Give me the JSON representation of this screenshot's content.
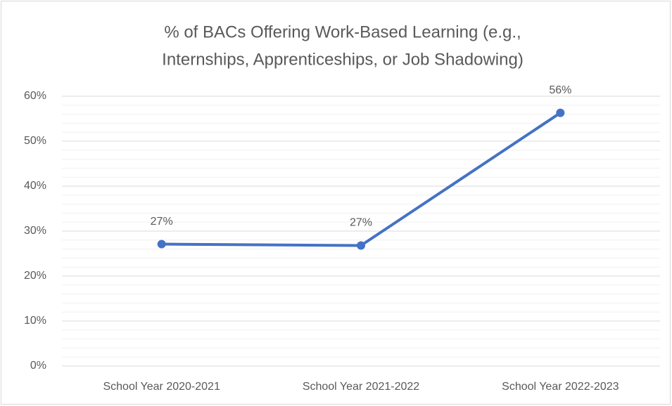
{
  "chart_data": {
    "type": "line",
    "title": [
      "% of BACs Offering Work-Based Learning (e.g.,",
      "Internships, Apprenticeships, or Job Shadowing)"
    ],
    "categories": [
      "School Year 2020-2021",
      "School Year 2021-2022",
      "School Year 2022-2023"
    ],
    "series": [
      {
        "name": "BACs Offering Work-Based Learning",
        "color": "#4472c4",
        "values": [
          27.1,
          26.8,
          56.3
        ],
        "value_labels": [
          "27%",
          "27%",
          "56%"
        ]
      }
    ],
    "ylim": [
      0,
      60
    ],
    "yticks": [
      {
        "value": 0,
        "label": "0%"
      },
      {
        "value": 10,
        "label": "10%"
      },
      {
        "value": 20,
        "label": "20%"
      },
      {
        "value": 30,
        "label": "30%"
      },
      {
        "value": 40,
        "label": "40%"
      },
      {
        "value": 50,
        "label": "50%"
      },
      {
        "value": 60,
        "label": "60%"
      }
    ],
    "yminorticks": [
      2,
      4,
      6,
      8,
      12,
      14,
      16,
      18,
      22,
      24,
      26,
      28,
      32,
      34,
      36,
      38,
      42,
      44,
      46,
      48,
      52,
      54,
      56,
      58
    ],
    "grid": true,
    "legend": false
  }
}
